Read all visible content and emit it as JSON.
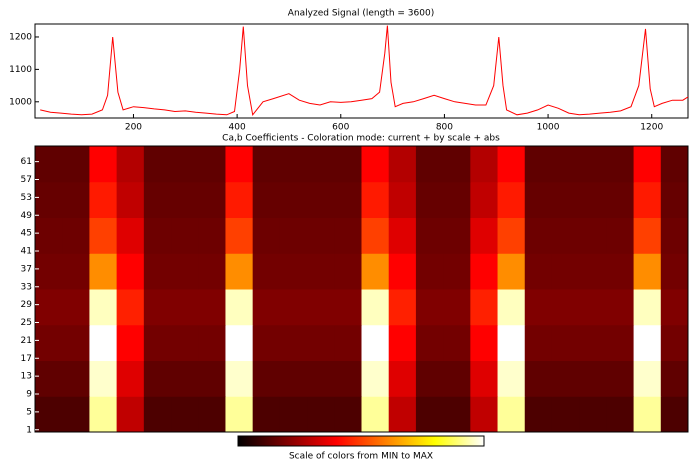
{
  "chart_data": [
    {
      "type": "line",
      "title": "Analyzed Signal  (length = 3600)",
      "xlim": [
        10,
        1270
      ],
      "ylim": [
        950,
        1240
      ],
      "xticks": [
        200,
        400,
        600,
        800,
        1000,
        1200
      ],
      "yticks": [
        1000,
        1100,
        1200
      ],
      "x": [
        20,
        40,
        60,
        80,
        100,
        120,
        140,
        150,
        160,
        170,
        180,
        200,
        220,
        240,
        260,
        280,
        300,
        320,
        340,
        360,
        380,
        395,
        405,
        412,
        420,
        430,
        450,
        470,
        500,
        520,
        540,
        560,
        580,
        600,
        620,
        640,
        660,
        675,
        685,
        690,
        697,
        705,
        720,
        740,
        760,
        780,
        800,
        820,
        840,
        860,
        880,
        895,
        905,
        913,
        920,
        940,
        960,
        980,
        1000,
        1020,
        1040,
        1060,
        1080,
        1100,
        1120,
        1140,
        1160,
        1175,
        1188,
        1197,
        1205,
        1220,
        1240,
        1260,
        1270
      ],
      "series": [
        {
          "color": "#ff0000",
          "values": [
            975,
            968,
            965,
            962,
            960,
            962,
            975,
            1020,
            1200,
            1030,
            975,
            985,
            982,
            978,
            975,
            970,
            972,
            968,
            965,
            962,
            960,
            970,
            1100,
            1232,
            1050,
            960,
            1000,
            1010,
            1025,
            1005,
            995,
            990,
            1000,
            998,
            1000,
            1005,
            1010,
            1030,
            1150,
            1235,
            1060,
            985,
            995,
            1000,
            1010,
            1020,
            1010,
            1000,
            995,
            990,
            990,
            1050,
            1200,
            1050,
            975,
            960,
            965,
            975,
            990,
            980,
            965,
            960,
            962,
            965,
            968,
            972,
            985,
            1050,
            1225,
            1040,
            985,
            995,
            1005,
            1005,
            1015
          ]
        }
      ]
    },
    {
      "type": "heatmap",
      "title": "Ca,b Coefficients - Coloration mode: current + by scale + abs",
      "xlim": [
        10,
        1270
      ],
      "ylim": [
        0.5,
        64.5
      ],
      "yticks": [
        1,
        5,
        9,
        13,
        17,
        21,
        25,
        29,
        33,
        37,
        41,
        45,
        49,
        53,
        57,
        61
      ],
      "x_bins": [
        10,
        62.5,
        115,
        167.5,
        220,
        272.5,
        325,
        377.5,
        430,
        482.5,
        535,
        587.5,
        640,
        692.5,
        745,
        797.5,
        850,
        902.5,
        955,
        1007.5,
        1060,
        1112.5,
        1165,
        1217.5,
        1270
      ],
      "y_bins": [
        0.5,
        8.5,
        16.5,
        24.5,
        32.5,
        40.5,
        48.5,
        56.5,
        64.5
      ],
      "z": [
        [
          0.12,
          0.12,
          0.92,
          0.3,
          0.12,
          0.12,
          0.12,
          0.92,
          0.12,
          0.12,
          0.12,
          0.12,
          0.92,
          0.3,
          0.12,
          0.12,
          0.3,
          0.92,
          0.12,
          0.12,
          0.12,
          0.12,
          0.92,
          0.12
        ],
        [
          0.15,
          0.15,
          0.96,
          0.35,
          0.15,
          0.15,
          0.15,
          0.96,
          0.15,
          0.15,
          0.15,
          0.15,
          0.96,
          0.35,
          0.15,
          0.15,
          0.35,
          0.96,
          0.15,
          0.15,
          0.15,
          0.15,
          0.96,
          0.15
        ],
        [
          0.18,
          0.18,
          1.0,
          0.4,
          0.18,
          0.18,
          0.18,
          1.0,
          0.18,
          0.18,
          0.18,
          0.18,
          1.0,
          0.4,
          0.18,
          0.18,
          0.4,
          1.0,
          0.18,
          0.18,
          0.18,
          0.18,
          1.0,
          0.18
        ],
        [
          0.2,
          0.2,
          0.95,
          0.45,
          0.2,
          0.2,
          0.2,
          0.95,
          0.2,
          0.2,
          0.2,
          0.2,
          0.95,
          0.45,
          0.2,
          0.2,
          0.45,
          0.95,
          0.2,
          0.2,
          0.2,
          0.2,
          0.95,
          0.2
        ],
        [
          0.18,
          0.18,
          0.62,
          0.4,
          0.18,
          0.18,
          0.18,
          0.62,
          0.18,
          0.18,
          0.18,
          0.18,
          0.62,
          0.4,
          0.18,
          0.18,
          0.4,
          0.62,
          0.18,
          0.18,
          0.18,
          0.18,
          0.62,
          0.18
        ],
        [
          0.17,
          0.17,
          0.5,
          0.35,
          0.17,
          0.17,
          0.17,
          0.5,
          0.17,
          0.17,
          0.17,
          0.17,
          0.5,
          0.35,
          0.17,
          0.17,
          0.35,
          0.5,
          0.17,
          0.17,
          0.17,
          0.17,
          0.5,
          0.17
        ],
        [
          0.16,
          0.16,
          0.44,
          0.3,
          0.16,
          0.16,
          0.16,
          0.44,
          0.16,
          0.16,
          0.16,
          0.16,
          0.44,
          0.3,
          0.16,
          0.16,
          0.3,
          0.44,
          0.16,
          0.16,
          0.16,
          0.16,
          0.44,
          0.16
        ],
        [
          0.15,
          0.15,
          0.4,
          0.28,
          0.15,
          0.15,
          0.15,
          0.4,
          0.15,
          0.15,
          0.15,
          0.15,
          0.4,
          0.28,
          0.15,
          0.15,
          0.28,
          0.4,
          0.15,
          0.15,
          0.15,
          0.15,
          0.4,
          0.15
        ]
      ],
      "colormap": [
        "#000000",
        "#800000",
        "#ff0000",
        "#ff8000",
        "#ffff00",
        "#ffffff"
      ],
      "colorbar_label": "Scale of colors from MIN to MAX"
    }
  ]
}
